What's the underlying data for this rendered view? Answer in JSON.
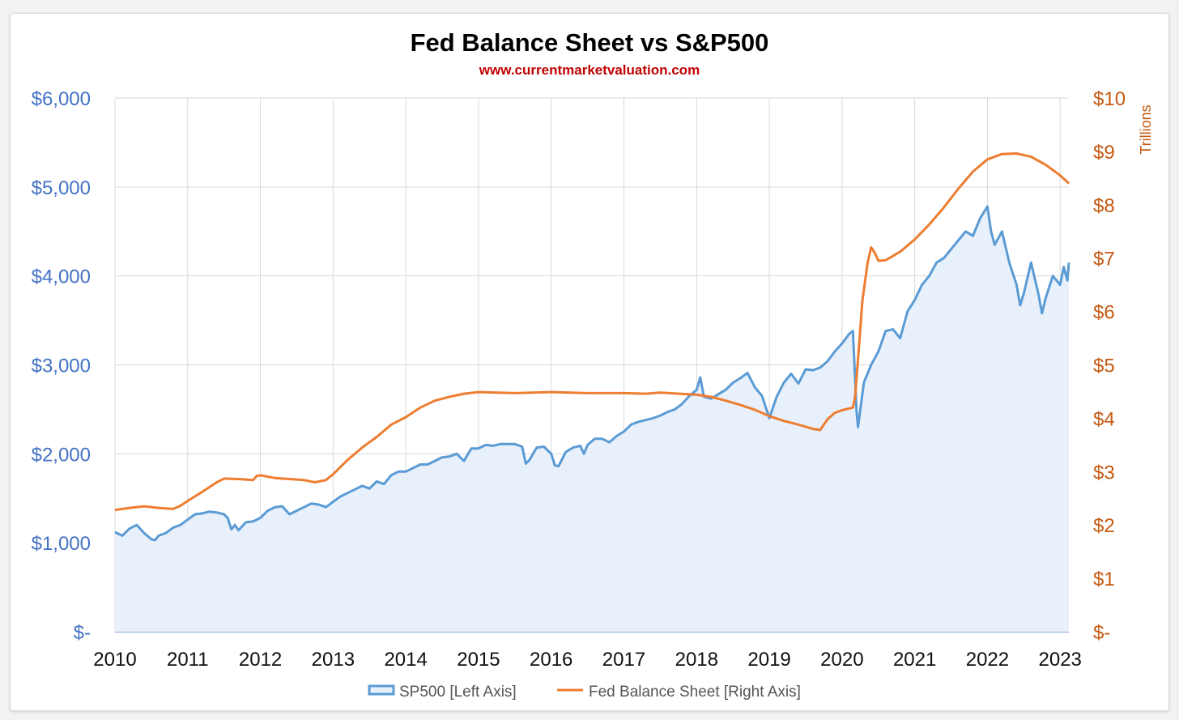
{
  "chart_data": {
    "type": "line",
    "title": "Fed Balance Sheet vs S&P500",
    "subtitle": "www.currentmarketvaluation.com",
    "x_range": [
      2010,
      2023.12
    ],
    "x_ticks": [
      "2010",
      "2011",
      "2012",
      "2013",
      "2014",
      "2015",
      "2016",
      "2017",
      "2018",
      "2019",
      "2020",
      "2021",
      "2022",
      "2023"
    ],
    "left_axis": {
      "range": [
        0,
        6000
      ],
      "ticks": [
        0,
        1000,
        2000,
        3000,
        4000,
        5000,
        6000
      ],
      "tick_labels": [
        "$-",
        "$1,000",
        "$2,000",
        "$3,000",
        "$4,000",
        "$5,000",
        "$6,000"
      ]
    },
    "right_axis": {
      "label": "Trillions",
      "range": [
        0,
        10
      ],
      "ticks": [
        0,
        1,
        2,
        3,
        4,
        5,
        6,
        7,
        8,
        9,
        10
      ],
      "tick_labels": [
        "$-",
        "$1",
        "$2",
        "$3",
        "$4",
        "$5",
        "$6",
        "$7",
        "$8",
        "$9",
        "$10"
      ]
    },
    "grid": true,
    "legend_position": "bottom",
    "series": [
      {
        "name": "SP500 [Left Axis]",
        "axis": "left",
        "style": "area",
        "color": "#5b9bd5",
        "fill": "#e8f0fb",
        "points": [
          [
            2010.0,
            1120
          ],
          [
            2010.1,
            1080
          ],
          [
            2010.2,
            1160
          ],
          [
            2010.3,
            1200
          ],
          [
            2010.4,
            1110
          ],
          [
            2010.5,
            1040
          ],
          [
            2010.55,
            1030
          ],
          [
            2010.6,
            1080
          ],
          [
            2010.7,
            1110
          ],
          [
            2010.8,
            1170
          ],
          [
            2010.9,
            1200
          ],
          [
            2011.0,
            1260
          ],
          [
            2011.1,
            1320
          ],
          [
            2011.2,
            1330
          ],
          [
            2011.3,
            1350
          ],
          [
            2011.4,
            1340
          ],
          [
            2011.5,
            1320
          ],
          [
            2011.55,
            1280
          ],
          [
            2011.6,
            1150
          ],
          [
            2011.65,
            1200
          ],
          [
            2011.7,
            1140
          ],
          [
            2011.8,
            1230
          ],
          [
            2011.9,
            1240
          ],
          [
            2012.0,
            1280
          ],
          [
            2012.1,
            1360
          ],
          [
            2012.2,
            1400
          ],
          [
            2012.3,
            1410
          ],
          [
            2012.4,
            1320
          ],
          [
            2012.5,
            1360
          ],
          [
            2012.6,
            1400
          ],
          [
            2012.7,
            1440
          ],
          [
            2012.8,
            1430
          ],
          [
            2012.9,
            1400
          ],
          [
            2013.0,
            1460
          ],
          [
            2013.1,
            1520
          ],
          [
            2013.2,
            1560
          ],
          [
            2013.3,
            1600
          ],
          [
            2013.4,
            1640
          ],
          [
            2013.5,
            1610
          ],
          [
            2013.6,
            1690
          ],
          [
            2013.7,
            1660
          ],
          [
            2013.8,
            1760
          ],
          [
            2013.9,
            1800
          ],
          [
            2014.0,
            1800
          ],
          [
            2014.1,
            1840
          ],
          [
            2014.2,
            1880
          ],
          [
            2014.3,
            1880
          ],
          [
            2014.4,
            1920
          ],
          [
            2014.5,
            1960
          ],
          [
            2014.6,
            1970
          ],
          [
            2014.7,
            2000
          ],
          [
            2014.8,
            1920
          ],
          [
            2014.9,
            2060
          ],
          [
            2015.0,
            2060
          ],
          [
            2015.1,
            2100
          ],
          [
            2015.2,
            2090
          ],
          [
            2015.3,
            2110
          ],
          [
            2015.4,
            2110
          ],
          [
            2015.5,
            2110
          ],
          [
            2015.6,
            2080
          ],
          [
            2015.65,
            1890
          ],
          [
            2015.7,
            1930
          ],
          [
            2015.8,
            2070
          ],
          [
            2015.9,
            2080
          ],
          [
            2016.0,
            2000
          ],
          [
            2016.05,
            1870
          ],
          [
            2016.1,
            1860
          ],
          [
            2016.2,
            2020
          ],
          [
            2016.3,
            2070
          ],
          [
            2016.4,
            2090
          ],
          [
            2016.45,
            2000
          ],
          [
            2016.5,
            2100
          ],
          [
            2016.6,
            2170
          ],
          [
            2016.7,
            2170
          ],
          [
            2016.8,
            2130
          ],
          [
            2016.9,
            2200
          ],
          [
            2017.0,
            2250
          ],
          [
            2017.1,
            2330
          ],
          [
            2017.2,
            2360
          ],
          [
            2017.3,
            2380
          ],
          [
            2017.4,
            2400
          ],
          [
            2017.5,
            2430
          ],
          [
            2017.6,
            2470
          ],
          [
            2017.7,
            2500
          ],
          [
            2017.8,
            2560
          ],
          [
            2017.9,
            2650
          ],
          [
            2018.0,
            2720
          ],
          [
            2018.05,
            2860
          ],
          [
            2018.1,
            2640
          ],
          [
            2018.2,
            2620
          ],
          [
            2018.3,
            2670
          ],
          [
            2018.4,
            2720
          ],
          [
            2018.5,
            2800
          ],
          [
            2018.6,
            2850
          ],
          [
            2018.7,
            2910
          ],
          [
            2018.8,
            2750
          ],
          [
            2018.9,
            2650
          ],
          [
            2019.0,
            2400
          ],
          [
            2019.1,
            2640
          ],
          [
            2019.2,
            2800
          ],
          [
            2019.3,
            2900
          ],
          [
            2019.4,
            2790
          ],
          [
            2019.5,
            2950
          ],
          [
            2019.6,
            2940
          ],
          [
            2019.7,
            2970
          ],
          [
            2019.8,
            3040
          ],
          [
            2019.9,
            3150
          ],
          [
            2020.0,
            3240
          ],
          [
            2020.1,
            3350
          ],
          [
            2020.15,
            3380
          ],
          [
            2020.2,
            2480
          ],
          [
            2020.22,
            2300
          ],
          [
            2020.3,
            2800
          ],
          [
            2020.4,
            3000
          ],
          [
            2020.5,
            3150
          ],
          [
            2020.6,
            3380
          ],
          [
            2020.7,
            3400
          ],
          [
            2020.8,
            3300
          ],
          [
            2020.9,
            3600
          ],
          [
            2021.0,
            3730
          ],
          [
            2021.1,
            3900
          ],
          [
            2021.2,
            4000
          ],
          [
            2021.3,
            4150
          ],
          [
            2021.4,
            4200
          ],
          [
            2021.5,
            4300
          ],
          [
            2021.6,
            4400
          ],
          [
            2021.7,
            4500
          ],
          [
            2021.8,
            4450
          ],
          [
            2021.9,
            4650
          ],
          [
            2022.0,
            4780
          ],
          [
            2022.05,
            4500
          ],
          [
            2022.1,
            4350
          ],
          [
            2022.2,
            4500
          ],
          [
            2022.3,
            4150
          ],
          [
            2022.4,
            3900
          ],
          [
            2022.45,
            3670
          ],
          [
            2022.5,
            3800
          ],
          [
            2022.6,
            4150
          ],
          [
            2022.7,
            3800
          ],
          [
            2022.75,
            3580
          ],
          [
            2022.8,
            3750
          ],
          [
            2022.9,
            4000
          ],
          [
            2023.0,
            3900
          ],
          [
            2023.05,
            4100
          ],
          [
            2023.1,
            3950
          ],
          [
            2023.12,
            4150
          ]
        ]
      },
      {
        "name": "Fed Balance Sheet [Right Axis]",
        "axis": "right",
        "style": "line",
        "color": "#ed7d31",
        "points": [
          [
            2010.0,
            2.28
          ],
          [
            2010.2,
            2.32
          ],
          [
            2010.4,
            2.35
          ],
          [
            2010.6,
            2.32
          ],
          [
            2010.8,
            2.3
          ],
          [
            2010.9,
            2.36
          ],
          [
            2011.0,
            2.45
          ],
          [
            2011.2,
            2.62
          ],
          [
            2011.4,
            2.8
          ],
          [
            2011.5,
            2.87
          ],
          [
            2011.7,
            2.86
          ],
          [
            2011.9,
            2.84
          ],
          [
            2011.95,
            2.92
          ],
          [
            2012.0,
            2.93
          ],
          [
            2012.2,
            2.88
          ],
          [
            2012.4,
            2.86
          ],
          [
            2012.6,
            2.84
          ],
          [
            2012.75,
            2.8
          ],
          [
            2012.9,
            2.84
          ],
          [
            2013.0,
            2.95
          ],
          [
            2013.2,
            3.22
          ],
          [
            2013.4,
            3.45
          ],
          [
            2013.6,
            3.65
          ],
          [
            2013.8,
            3.88
          ],
          [
            2014.0,
            4.02
          ],
          [
            2014.2,
            4.2
          ],
          [
            2014.4,
            4.33
          ],
          [
            2014.6,
            4.4
          ],
          [
            2014.8,
            4.46
          ],
          [
            2015.0,
            4.49
          ],
          [
            2015.5,
            4.47
          ],
          [
            2016.0,
            4.49
          ],
          [
            2016.5,
            4.47
          ],
          [
            2017.0,
            4.47
          ],
          [
            2017.3,
            4.46
          ],
          [
            2017.5,
            4.48
          ],
          [
            2018.0,
            4.44
          ],
          [
            2018.2,
            4.4
          ],
          [
            2018.4,
            4.33
          ],
          [
            2018.6,
            4.25
          ],
          [
            2018.8,
            4.16
          ],
          [
            2019.0,
            4.04
          ],
          [
            2019.2,
            3.95
          ],
          [
            2019.4,
            3.88
          ],
          [
            2019.6,
            3.8
          ],
          [
            2019.7,
            3.78
          ],
          [
            2019.8,
            3.98
          ],
          [
            2019.9,
            4.1
          ],
          [
            2020.0,
            4.15
          ],
          [
            2020.15,
            4.2
          ],
          [
            2020.18,
            4.4
          ],
          [
            2020.22,
            5.1
          ],
          [
            2020.28,
            6.2
          ],
          [
            2020.35,
            6.9
          ],
          [
            2020.4,
            7.2
          ],
          [
            2020.45,
            7.1
          ],
          [
            2020.5,
            6.95
          ],
          [
            2020.6,
            6.96
          ],
          [
            2020.8,
            7.12
          ],
          [
            2021.0,
            7.35
          ],
          [
            2021.2,
            7.63
          ],
          [
            2021.4,
            7.95
          ],
          [
            2021.6,
            8.3
          ],
          [
            2021.8,
            8.62
          ],
          [
            2022.0,
            8.85
          ],
          [
            2022.2,
            8.95
          ],
          [
            2022.4,
            8.96
          ],
          [
            2022.6,
            8.9
          ],
          [
            2022.8,
            8.75
          ],
          [
            2023.0,
            8.55
          ],
          [
            2023.12,
            8.4
          ]
        ]
      }
    ]
  }
}
